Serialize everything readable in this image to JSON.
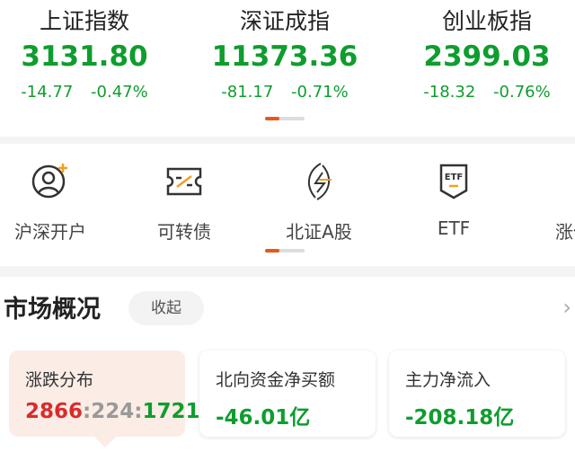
{
  "indices": [
    {
      "name": "上证指数",
      "value": "3131.80",
      "change": "-14.77",
      "pct": "-0.47%"
    },
    {
      "name": "深证成指",
      "value": "11373.36",
      "change": "-81.17",
      "pct": "-0.71%"
    },
    {
      "name": "创业板指",
      "value": "2399.03",
      "change": "-18.32",
      "pct": "-0.76%"
    }
  ],
  "entries": [
    {
      "label": "沪深开户",
      "icon": "user-add-icon"
    },
    {
      "label": "可转债",
      "icon": "ticket-icon"
    },
    {
      "label": "北证A股",
      "icon": "lightning-icon"
    },
    {
      "label": "ETF",
      "icon": "etf-shield-icon"
    },
    {
      "label": "涨停",
      "icon": "partial-icon"
    }
  ],
  "market": {
    "title": "市场概况",
    "fold_label": "收起",
    "cards": [
      {
        "title": "涨跌分布",
        "up": "2866",
        "flat": "224",
        "down": "1721"
      },
      {
        "title": "北向资金净买额",
        "value": "-46.01亿"
      },
      {
        "title": "主力净流入",
        "value": "-208.18亿"
      }
    ]
  },
  "colors": {
    "down": "#0f9d2e",
    "up": "#d92b2b",
    "accent": "#e55a1c"
  }
}
